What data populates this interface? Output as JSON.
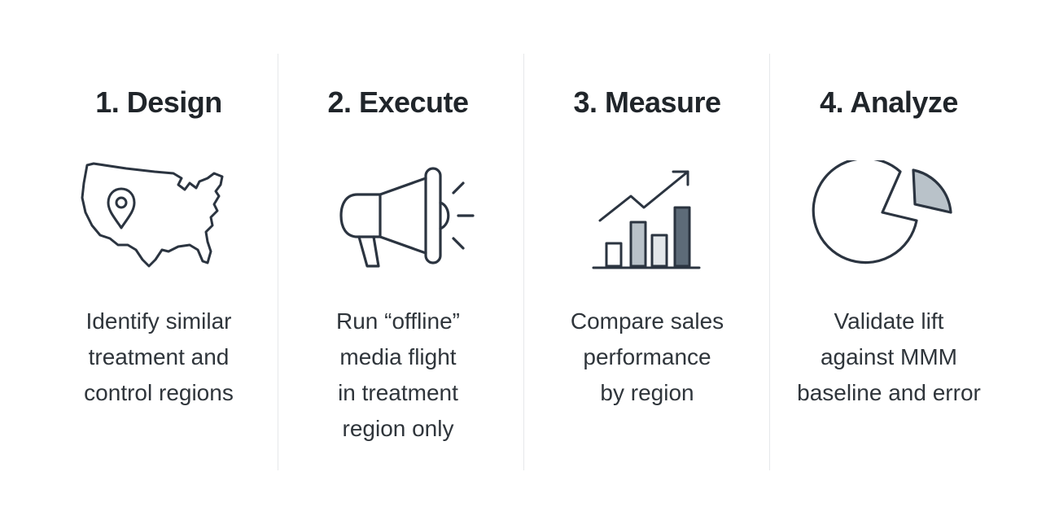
{
  "steps": [
    {
      "title": "1. Design",
      "icon": "us-map-pin-icon",
      "description": [
        "Identify similar",
        "treatment and",
        "control regions"
      ]
    },
    {
      "title": "2. Execute",
      "icon": "megaphone-icon",
      "description": [
        "Run “offline”",
        "media flight",
        "in treatment",
        "region only"
      ]
    },
    {
      "title": "3. Measure",
      "icon": "bar-chart-trend-icon",
      "description": [
        "Compare sales",
        "performance",
        "by region"
      ]
    },
    {
      "title": "4. Analyze",
      "icon": "pie-chart-icon",
      "description": [
        "Validate lift",
        "against MMM",
        "baseline and error"
      ]
    }
  ],
  "colors": {
    "stroke": "#2b3440",
    "fill_light": "#b9c2c9",
    "fill_dark": "#5d6b78",
    "divider": "#e6e8ea"
  }
}
